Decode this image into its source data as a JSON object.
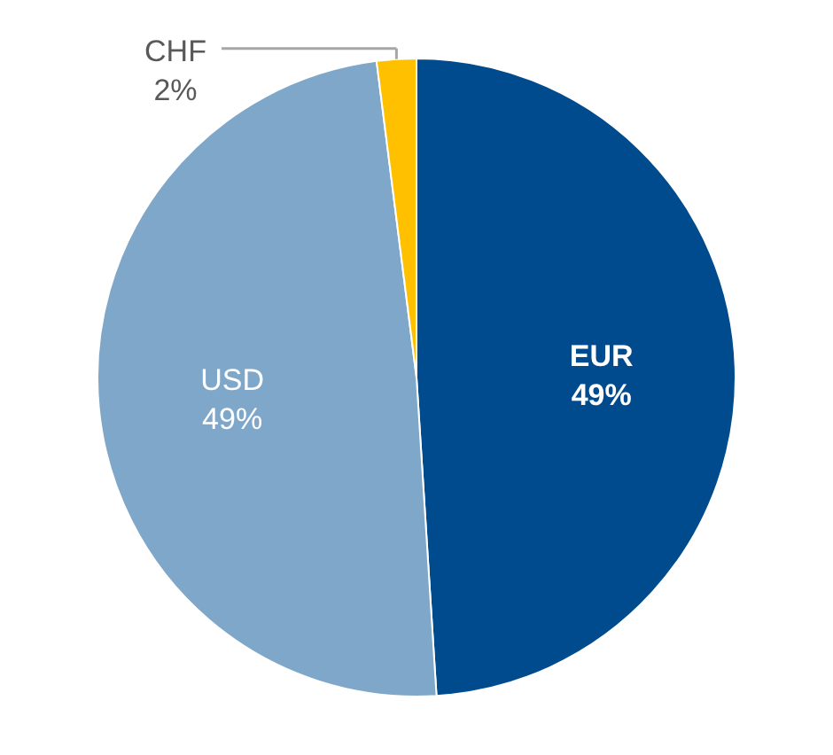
{
  "chart_data": {
    "type": "pie",
    "categories": [
      "EUR",
      "USD",
      "CHF"
    ],
    "values": [
      49,
      49,
      2
    ],
    "colors": [
      "#004b8d",
      "#7fa7c9",
      "#ffc000"
    ],
    "data_labels": true,
    "value_labels": [
      "49%",
      "49%",
      "2%"
    ]
  }
}
